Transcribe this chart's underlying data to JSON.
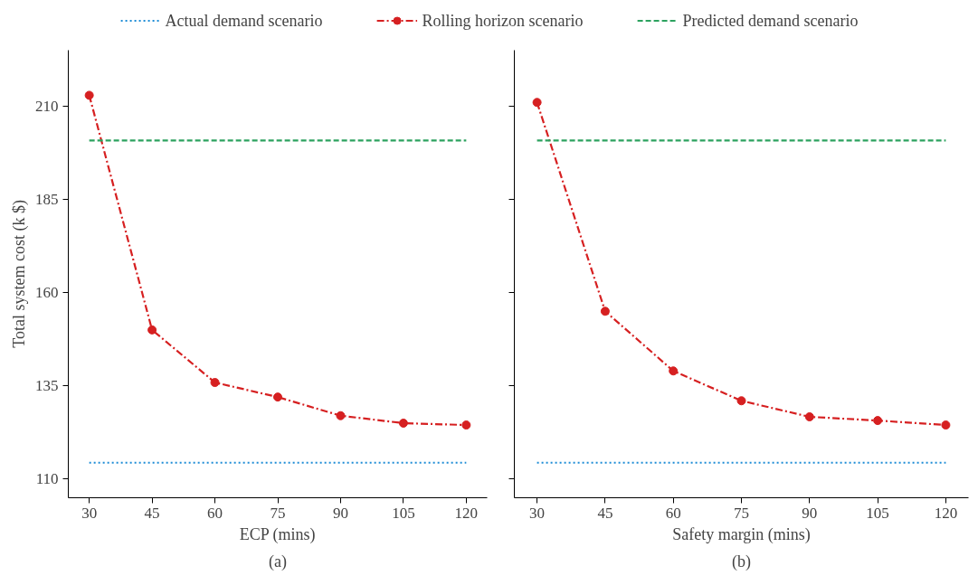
{
  "chart_data": [
    {
      "type": "line",
      "xlabel": "ECP (mins)",
      "ylabel": "Total system cost (k $)",
      "annotations": [
        "(a)"
      ],
      "x": [
        30,
        45,
        60,
        75,
        90,
        105,
        120
      ],
      "xlim": [
        25,
        125
      ],
      "ylim": [
        105,
        225
      ],
      "xticks": [
        30,
        45,
        60,
        75,
        90,
        105,
        120
      ],
      "yticks": [
        110,
        135,
        160,
        185,
        210
      ],
      "grid": false,
      "legend": "top",
      "series": [
        {
          "name": "Actual demand scenario",
          "color": "#1f8dd6",
          "line_style": "dotted",
          "marker": "none",
          "values": [
            114.4,
            114.4,
            114.4,
            114.4,
            114.4,
            114.4,
            114.4
          ]
        },
        {
          "name": "Rolling horizon scenario",
          "color": "#d62021",
          "line_style": "dashdot",
          "marker": "circle",
          "values": [
            212.9,
            150,
            135.9,
            132,
            127,
            125,
            124.5
          ]
        },
        {
          "name": "Predicted demand scenario",
          "color": "#2ca25f",
          "line_style": "dashed",
          "marker": "none",
          "values": [
            200.8,
            200.8,
            200.8,
            200.8,
            200.8,
            200.8,
            200.8
          ]
        }
      ]
    },
    {
      "type": "line",
      "xlabel": "Safety margin (mins)",
      "annotations": [
        "(b)"
      ],
      "x": [
        30,
        45,
        60,
        75,
        90,
        105,
        120
      ],
      "xlim": [
        25,
        125
      ],
      "ylim": [
        105,
        225
      ],
      "xticks": [
        30,
        45,
        60,
        75,
        90,
        105,
        120
      ],
      "yticks": [
        110,
        135,
        160,
        185,
        210
      ],
      "grid": false,
      "tick_labels": "x",
      "series": [
        {
          "color": "#1f8dd6",
          "line_style": "dotted",
          "marker": "none",
          "values": [
            114.4,
            114.4,
            114.4,
            114.4,
            114.4,
            114.4,
            114.4
          ]
        },
        {
          "color": "#d62021",
          "line_style": "dashdot",
          "marker": "circle",
          "values": [
            211,
            155,
            139,
            131,
            126.7,
            125.7,
            124.5
          ]
        },
        {
          "color": "#2ca25f",
          "line_style": "dashed",
          "marker": "none",
          "values": [
            200.8,
            200.8,
            200.8,
            200.8,
            200.8,
            200.8,
            200.8
          ]
        }
      ]
    }
  ]
}
